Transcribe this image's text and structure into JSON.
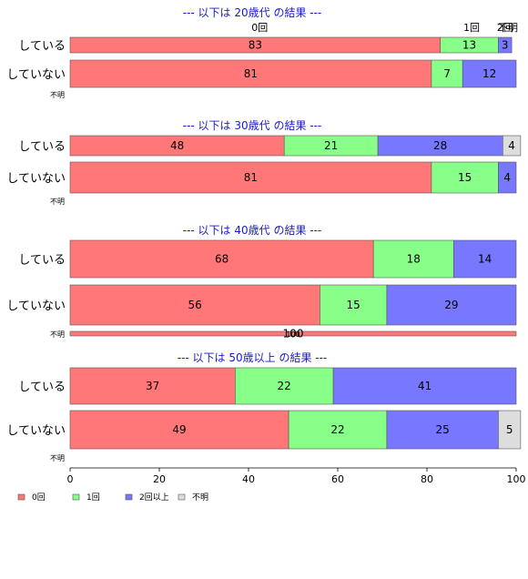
{
  "chart_data": {
    "type": "bar",
    "orientation": "horizontal",
    "stacked": true,
    "xlim": [
      0,
      100
    ],
    "x_ticks": [
      "0",
      "20",
      "40",
      "60",
      "80",
      "100"
    ],
    "categories_order": [
      "0回",
      "1回",
      "2回以上",
      "不明"
    ],
    "colors": {
      "0回": "#ff7777",
      "1回": "#88ff88",
      "2回以上": "#7777ff",
      "不明": "#dddddd"
    },
    "top_labels": [
      "0回",
      "1回",
      "2回",
      "不明"
    ],
    "panels": [
      {
        "title": "--- 以下は 20歳代 の結果 ---",
        "rows": [
          {
            "label": "している",
            "values": [
              83,
              13,
              3,
              0
            ]
          },
          {
            "label": "していない",
            "values": [
              81,
              7,
              12,
              0
            ]
          },
          {
            "label": "不明",
            "values": []
          }
        ]
      },
      {
        "title": "--- 以下は 30歳代 の結果 ---",
        "rows": [
          {
            "label": "している",
            "values": [
              48,
              21,
              28,
              4
            ]
          },
          {
            "label": "していない",
            "values": [
              81,
              15,
              4,
              0
            ]
          },
          {
            "label": "不明",
            "values": []
          }
        ]
      },
      {
        "title": "--- 以下は 40歳代 の結果 ---",
        "rows": [
          {
            "label": "している",
            "values": [
              68,
              18,
              14,
              0
            ]
          },
          {
            "label": "していない",
            "values": [
              56,
              15,
              29,
              0
            ]
          },
          {
            "label": "不明",
            "values": [
              100,
              0,
              0,
              0
            ]
          }
        ]
      },
      {
        "title": "--- 以下は 50歳以上 の結果 ---",
        "rows": [
          {
            "label": "している",
            "values": [
              37,
              22,
              41,
              0
            ]
          },
          {
            "label": "していない",
            "values": [
              49,
              22,
              25,
              5
            ]
          },
          {
            "label": "不明",
            "values": []
          }
        ]
      }
    ],
    "legend": [
      "0回",
      "1回",
      "2回以上",
      "不明"
    ]
  }
}
